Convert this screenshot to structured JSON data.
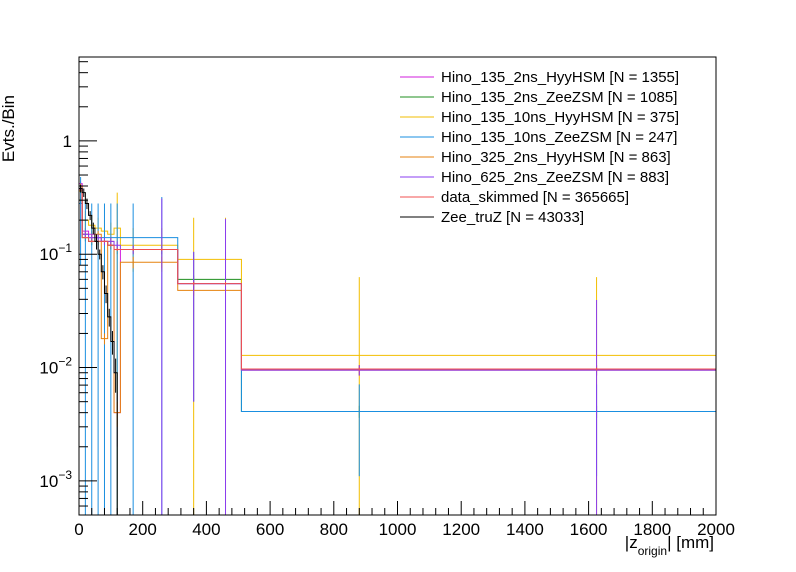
{
  "chart_data": {
    "type": "line",
    "style": "step histogram",
    "ylabel": "Evts./Bin",
    "xlabel_main": "|z",
    "xlabel_sub": "origin",
    "xlabel_tail": "| [mm]",
    "xlim": [
      0,
      2000
    ],
    "ylim": [
      0.0005,
      5.5
    ],
    "yscale": "log",
    "x_ticks": [
      "0",
      "200",
      "400",
      "600",
      "800",
      "1000",
      "1200",
      "1400",
      "1600",
      "1800",
      "2000"
    ],
    "y_ticks": [
      {
        "base": "10",
        "exp": "−3"
      },
      {
        "base": "10",
        "exp": "−2"
      },
      {
        "base": "10",
        "exp": "−1"
      },
      {
        "base": "1",
        "exp": ""
      }
    ],
    "legend_position": "top-right",
    "grid": false,
    "series": [
      {
        "name": "Hino_135_2ns_HyyHSM [N = 1355]",
        "color": "#d21ede",
        "edges": [
          0,
          10,
          30,
          50,
          70,
          90,
          110,
          130,
          210,
          310,
          410,
          510,
          1250,
          2000
        ],
        "values": [
          0.42,
          0.16,
          0.15,
          0.14,
          0.13,
          0.12,
          0.004,
          0.11,
          0.11,
          0.055,
          0.055,
          0.0095,
          0.0095
        ],
        "errors": [
          0.02,
          0.01,
          0.01,
          0.01,
          0.01,
          0.01,
          0.002,
          0.01,
          0.01,
          0.005,
          0.005,
          0.001,
          0.001
        ]
      },
      {
        "name": "Hino_135_2ns_ZeeZSM [N = 1085]",
        "color": "#1f8f1f",
        "edges": [
          0,
          10,
          30,
          50,
          70,
          90,
          110,
          130,
          210,
          310,
          410,
          510,
          1250,
          2000
        ],
        "values": [
          0.3,
          0.14,
          0.13,
          0.13,
          0.13,
          0.12,
          0.11,
          0.11,
          0.11,
          0.06,
          0.06,
          0.0041,
          0.0041
        ],
        "errors": [
          0.02,
          0.01,
          0.01,
          0.01,
          0.01,
          0.01,
          0.01,
          0.01,
          0.01,
          0.005,
          0.005,
          0.0005,
          0.0005
        ]
      },
      {
        "name": "Hino_135_10ns_HyyHSM [N = 375]",
        "color": "#f2be00",
        "edges": [
          0,
          10,
          30,
          50,
          70,
          90,
          110,
          130,
          210,
          310,
          410,
          510,
          1250,
          2000
        ],
        "values": [
          0.36,
          0.2,
          0.18,
          0.17,
          0.16,
          0.15,
          0.17,
          0.12,
          0.12,
          0.09,
          0.09,
          0.0128,
          0.0128
        ],
        "errors": [
          0.05,
          0.04,
          0.04,
          0.04,
          0.04,
          0.04,
          0.18,
          0.05,
          0.05,
          0.12,
          0.12,
          0.05,
          0.05
        ]
      },
      {
        "name": "Hino_135_10ns_ZeeZSM [N = 247]",
        "color": "#1a8fe0",
        "edges": [
          0,
          10,
          30,
          50,
          70,
          90,
          110,
          130,
          210,
          310,
          410,
          510,
          1250,
          2000
        ],
        "values": [
          0.28,
          0.15,
          0.14,
          0.14,
          0.14,
          0.14,
          0.14,
          0.14,
          0.14,
          0.055,
          0.055,
          0.0041,
          0.0041
        ],
        "errors": [
          0.2,
          0.15,
          0.14,
          0.14,
          0.14,
          0.14,
          0.14,
          0.14,
          0.18,
          0.05,
          0.05,
          0.003,
          0.003
        ]
      },
      {
        "name": "Hino_325_2ns_HyyHSM [N = 863]",
        "color": "#e6820f",
        "edges": [
          0,
          10,
          30,
          50,
          70,
          90,
          110,
          130,
          210,
          310,
          410,
          510,
          1250,
          2000
        ],
        "values": [
          0.4,
          0.15,
          0.14,
          0.15,
          0.018,
          0.13,
          0.004,
          0.085,
          0.085,
          0.048,
          0.048,
          0.0095,
          0.0095
        ],
        "errors": [
          0.02,
          0.01,
          0.01,
          0.01,
          0.002,
          0.01,
          0.001,
          0.01,
          0.01,
          0.005,
          0.005,
          0.001,
          0.001
        ]
      },
      {
        "name": "Hino_625_2ns_ZeeZSM [N = 883]",
        "color": "#8a3cf0",
        "edges": [
          0,
          10,
          30,
          50,
          70,
          90,
          110,
          130,
          210,
          310,
          410,
          510,
          1250,
          2000
        ],
        "values": [
          0.38,
          0.15,
          0.14,
          0.14,
          0.13,
          0.13,
          0.12,
          0.11,
          0.11,
          0.055,
          0.055,
          0.0095,
          0.0095
        ],
        "errors": [
          0.02,
          0.01,
          0.01,
          0.01,
          0.01,
          0.01,
          0.01,
          0.01,
          0.2,
          0.05,
          0.15,
          0.001,
          0.03
        ]
      },
      {
        "name": "data_skimmed [N = 365665]",
        "color": "#f05050",
        "edges": [
          0,
          10,
          30,
          50,
          70,
          90,
          110,
          130,
          210,
          310,
          410,
          510,
          1250,
          2000
        ],
        "values": [
          0.37,
          0.14,
          0.13,
          0.13,
          0.13,
          0.12,
          0.11,
          0.11,
          0.11,
          0.055,
          0.055,
          0.0097,
          0.0097
        ],
        "errors": [
          0.005,
          0.003,
          0.003,
          0.003,
          0.003,
          0.003,
          0.003,
          0.003,
          0.003,
          0.002,
          0.002,
          0.0003,
          0.0003
        ]
      },
      {
        "name": "Zee_truZ [N = 43033]",
        "color": "#000000",
        "edges": [
          0,
          10,
          20,
          30,
          40,
          50,
          60,
          70,
          80,
          90,
          100,
          110,
          120
        ],
        "values": [
          0.38,
          0.35,
          0.28,
          0.22,
          0.17,
          0.13,
          0.1,
          0.07,
          0.045,
          0.028,
          0.017,
          0.009
        ],
        "errors": [
          0.03,
          0.03,
          0.03,
          0.02,
          0.02,
          0.02,
          0.01,
          0.01,
          0.008,
          0.005,
          0.004,
          0.003
        ]
      }
    ]
  }
}
